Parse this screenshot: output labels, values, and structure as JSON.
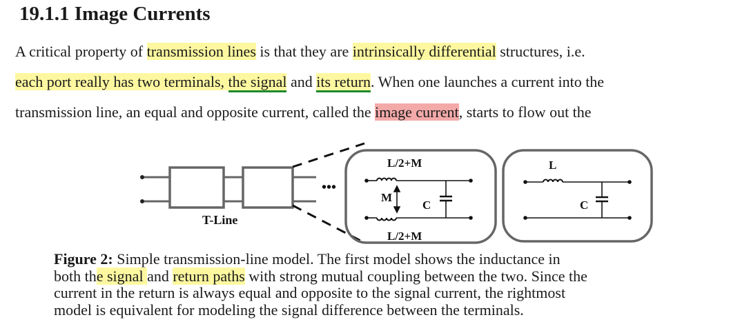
{
  "heading": "19.1.1 Image Currents",
  "paragraph": {
    "l1a": "A critical property of ",
    "l1b": "transmission lines",
    "l1c": " is that they are ",
    "l1d": "intrinsically differential",
    "l1e": " structures, i.e.",
    "l2a": "each port really has two terminals, ",
    "l2b": "the signal",
    "l2c": " and ",
    "l2d": "its return",
    "l2e": ". When one launches a current into the",
    "l3a": "transmission line, an equal and opposite current, called the ",
    "l3b": "image current",
    "l3c": ", starts to flow out the"
  },
  "figure": {
    "tline_label": "T-Line",
    "l_top": "L/2+M",
    "l_bottom": "L/2+M",
    "mutual": "M",
    "cap1": "C",
    "l_right": "L",
    "cap2": "C",
    "ellipsis": "•••"
  },
  "caption": {
    "label": "Figure 2:",
    "l1": " Simple transmission-line model. The first model shows the inductance in",
    "l2a": "both th",
    "l2b": "e signal ",
    "l2c": "and ",
    "l2d": "return paths",
    "l2e": " with strong mutual coupling between the two. Since the",
    "l3": "current in the return is always equal and opposite to the signal current, the rightmost",
    "l4": "model is equivalent for modeling the signal difference between the terminals."
  },
  "colors": {
    "highlight_yellow": "#fdf8a0",
    "highlight_red": "#f4a9a9",
    "underline_green": "#1c8a2a"
  }
}
